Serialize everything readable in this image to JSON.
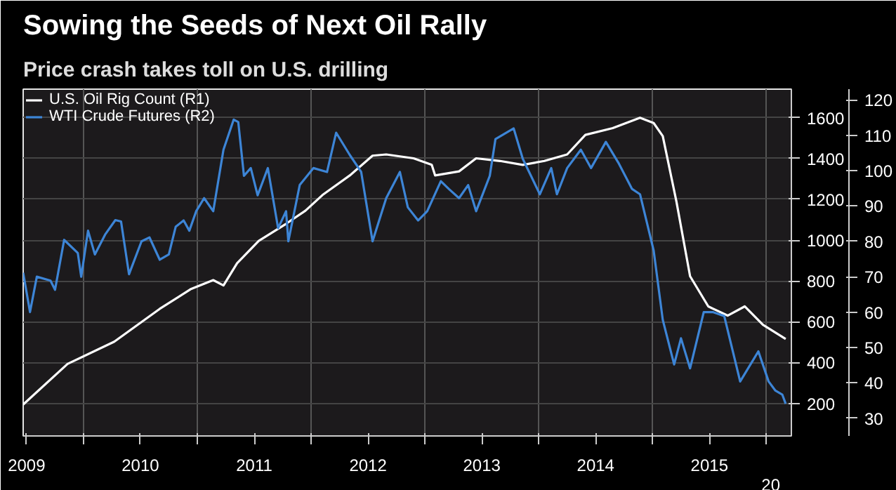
{
  "chart_data": {
    "type": "line",
    "title": "Sowing the Seeds of Next Oil Rally",
    "subtitle": "Price crash takes toll on U.S. drilling",
    "xlim": [
      2009.47,
      2016.22
    ],
    "xticks": [
      {
        "value": 2009.5,
        "label": "2009"
      },
      {
        "value": 2010,
        "label": null
      },
      {
        "value": 2010.5,
        "label": "2010"
      },
      {
        "value": 2011,
        "label": null
      },
      {
        "value": 2011.5,
        "label": "2011"
      },
      {
        "value": 2012,
        "label": null
      },
      {
        "value": 2012.5,
        "label": "2012"
      },
      {
        "value": 2013,
        "label": null
      },
      {
        "value": 2013.5,
        "label": "2013"
      },
      {
        "value": 2014,
        "label": null
      },
      {
        "value": 2014.5,
        "label": "2014"
      },
      {
        "value": 2015,
        "label": null
      },
      {
        "value": 2015.5,
        "label": "2015"
      },
      {
        "value": 2016,
        "label": null
      }
    ],
    "ylim": [
      40,
      1740
    ],
    "yticks": [
      200,
      400,
      600,
      800,
      1000,
      1200,
      1400,
      1600
    ],
    "y2lim": [
      25,
      123
    ],
    "y2ticks": [
      30,
      40,
      50,
      60,
      70,
      80,
      90,
      100,
      110,
      120
    ],
    "grid": true,
    "legend": "top left",
    "annotations": [
      "20"
    ],
    "series": [
      {
        "name": "U.S. Oil Rig Count (R1)",
        "color": "#ffffff",
        "x": [
          2009.47,
          2009.86,
          2010.27,
          2010.67,
          2010.94,
          2011.14,
          2011.23,
          2011.35,
          2011.54,
          2011.78,
          2011.95,
          2012.1,
          2012.34,
          2012.54,
          2012.66,
          2012.9,
          2013.06,
          2013.09,
          2013.3,
          2013.45,
          2013.66,
          2013.86,
          2014.05,
          2014.25,
          2014.41,
          2014.65,
          2014.89,
          2015.01,
          2015.09,
          2015.21,
          2015.33,
          2015.49,
          2015.66,
          2015.81,
          2015.97,
          2016.17
        ],
        "values": [
          194,
          393,
          502,
          663,
          759,
          804,
          778,
          887,
          996,
          1080,
          1144,
          1221,
          1317,
          1414,
          1420,
          1401,
          1369,
          1317,
          1337,
          1401,
          1388,
          1369,
          1388,
          1420,
          1516,
          1549,
          1600,
          1574,
          1510,
          1189,
          823,
          675,
          630,
          675,
          585,
          515
        ]
      },
      {
        "name": "WTI Crude Futures (R2)",
        "color": "#3d85d6",
        "axis": "y2",
        "x": [
          2009.47,
          2009.53,
          2009.59,
          2009.71,
          2009.75,
          2009.83,
          2009.95,
          2009.98,
          2010.04,
          2010.1,
          2010.19,
          2010.28,
          2010.33,
          2010.4,
          2010.51,
          2010.58,
          2010.67,
          2010.75,
          2010.81,
          2010.88,
          2010.93,
          2010.99,
          2011.06,
          2011.14,
          2011.23,
          2011.32,
          2011.36,
          2011.41,
          2011.47,
          2011.53,
          2011.62,
          2011.71,
          2011.78,
          2011.8,
          2011.9,
          2012.02,
          2012.14,
          2012.22,
          2012.34,
          2012.44,
          2012.54,
          2012.66,
          2012.78,
          2012.85,
          2012.94,
          2013.02,
          2013.14,
          2013.21,
          2013.3,
          2013.38,
          2013.45,
          2013.57,
          2013.62,
          2013.78,
          2013.86,
          2014.01,
          2014.11,
          2014.16,
          2014.25,
          2014.37,
          2014.46,
          2014.59,
          2014.7,
          2014.82,
          2014.89,
          2015.01,
          2015.09,
          2015.19,
          2015.25,
          2015.33,
          2015.45,
          2015.53,
          2015.63,
          2015.77,
          2015.93,
          2016.02,
          2016.08,
          2016.14,
          2016.17
        ],
        "values": [
          71.1,
          60,
          70,
          68.9,
          66.3,
          80.4,
          76.7,
          70,
          83,
          76.3,
          81.9,
          86,
          85.6,
          70.7,
          80,
          81.1,
          74.8,
          76.3,
          84.1,
          85.9,
          83,
          88.5,
          92.2,
          88.5,
          105.9,
          114.4,
          113.7,
          98.5,
          100.7,
          93,
          100.7,
          83.7,
          88.5,
          80,
          95.9,
          100.7,
          99.6,
          110.7,
          104.4,
          99.6,
          80,
          92.2,
          99.6,
          89.6,
          85.9,
          88.5,
          97,
          94.8,
          92.2,
          95.9,
          88.5,
          98.5,
          108.9,
          111.9,
          103.3,
          93.3,
          100.7,
          93.3,
          100.7,
          105.9,
          100.7,
          108.1,
          102.2,
          94.8,
          93.3,
          77.4,
          57.8,
          45.2,
          52.6,
          44.1,
          60,
          60,
          58.9,
          40.4,
          48.9,
          40.4,
          37.8,
          36.7,
          34.1
        ]
      }
    ]
  }
}
